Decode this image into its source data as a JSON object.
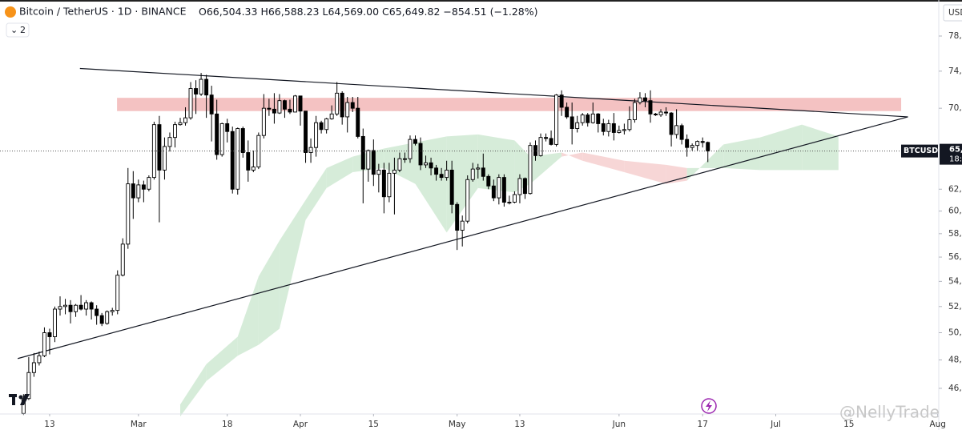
{
  "header": {
    "symbol": "Bitcoin / TetherUS · 1D · BINANCE",
    "ohlc": [
      {
        "label": "O",
        "value": "66,504.33"
      },
      {
        "label": "H",
        "value": "66,588.23"
      },
      {
        "label": "L",
        "value": "64,569.00"
      },
      {
        "label": "C",
        "value": "65,649.82"
      }
    ],
    "change": "−854.51 (−1.28%)",
    "indicators": "2",
    "currency": "USD",
    "ticker_tag": "BTCUSDT",
    "price_tag": "65,",
    "countdown_tag": "18:",
    "watermark": "@NellyTrade"
  },
  "chart_data": {
    "type": "candlestick",
    "log_scale": true,
    "grid": false,
    "up_color": "#ffffff",
    "down_color": "#000000",
    "edge_color": "#000000",
    "xlim": [
      -4.5,
      175.2
    ],
    "ylim": [
      44370,
      82330
    ],
    "xticks": [
      {
        "value": 5,
        "label": "13"
      },
      {
        "value": 22,
        "label": "Mar"
      },
      {
        "value": 39,
        "label": "18"
      },
      {
        "value": 53,
        "label": "Apr"
      },
      {
        "value": 67,
        "label": "15"
      },
      {
        "value": 83,
        "label": "May"
      },
      {
        "value": 95,
        "label": "13"
      },
      {
        "value": 114,
        "label": "Jun"
      },
      {
        "value": 130,
        "label": "17"
      },
      {
        "value": 144,
        "label": "Jul"
      },
      {
        "value": 158,
        "label": "15"
      },
      {
        "value": 175,
        "label": "Aug"
      }
    ],
    "yticks": [
      {
        "value": 78000,
        "label": "78,"
      },
      {
        "value": 74000,
        "label": "74,"
      },
      {
        "value": 70000,
        "label": "70,"
      },
      {
        "value": 62000,
        "label": "62,"
      },
      {
        "value": 60000,
        "label": "60,"
      },
      {
        "value": 58000,
        "label": "58,"
      },
      {
        "value": 56000,
        "label": "56,"
      },
      {
        "value": 54000,
        "label": "54,"
      },
      {
        "value": 52000,
        "label": "52,"
      },
      {
        "value": 50000,
        "label": "50,"
      },
      {
        "value": 48000,
        "label": "48,"
      },
      {
        "value": 46000,
        "label": "46,"
      }
    ],
    "open": [
      44300,
      45300,
      47100,
      47800,
      48300,
      50000,
      49700,
      51800,
      52000,
      52100,
      51600,
      52100,
      51800,
      52300,
      51800,
      51300,
      50700,
      51600,
      51700,
      54500,
      57100,
      62500,
      61200,
      62400,
      62000,
      63100,
      68300,
      63800,
      66100,
      67000,
      68300,
      68500,
      69000,
      72100,
      71500,
      73100,
      71400,
      69400,
      65300,
      68400,
      67600,
      62000,
      67900,
      65500,
      63800,
      64100,
      67200,
      70000,
      69900,
      69500,
      70800,
      69900,
      69600,
      71300,
      69700,
      65500,
      66000,
      68500,
      67800,
      68900,
      69400,
      71600,
      69100,
      70600,
      70000,
      67100,
      63900,
      65700,
      63400,
      63800,
      61300,
      63500,
      63800,
      64900,
      64900,
      66800,
      66400,
      64300,
      64500,
      64000,
      63400,
      63100,
      63800,
      60600,
      58300,
      59100,
      62900,
      63900,
      64000,
      63200,
      62300,
      61200,
      63100,
      60800,
      60800,
      61500,
      63000,
      61600,
      66200,
      65200,
      67000,
      66900,
      66300,
      71400,
      70100,
      69100,
      67900,
      68500,
      69300,
      68500,
      69400,
      68400,
      67600,
      68400,
      67500,
      67700,
      67800,
      68800,
      70600,
      71100,
      70800,
      69400,
      69300,
      69600,
      69500,
      67300,
      68200,
      66800,
      66000,
      66200,
      66600,
      66504.33
    ],
    "high": [
      45600,
      48200,
      48500,
      48600,
      50400,
      50300,
      52000,
      52800,
      52600,
      52500,
      52200,
      52900,
      52500,
      52400,
      52100,
      51500,
      51700,
      51900,
      54900,
      57600,
      64000,
      63700,
      62900,
      62800,
      63300,
      68600,
      69200,
      67000,
      67500,
      68600,
      69000,
      70100,
      72800,
      73000,
      73800,
      73600,
      72400,
      70900,
      68500,
      68900,
      68100,
      68000,
      68100,
      66700,
      65700,
      67500,
      71500,
      71000,
      71600,
      71500,
      70900,
      70900,
      71400,
      71300,
      69700,
      66900,
      69200,
      68700,
      69000,
      70300,
      72800,
      71800,
      71200,
      71200,
      71200,
      67900,
      65800,
      66800,
      64400,
      64500,
      64500,
      65000,
      65500,
      65500,
      67200,
      67200,
      67000,
      65200,
      65000,
      64300,
      64000,
      64700,
      64700,
      60800,
      59600,
      63300,
      64500,
      64400,
      65400,
      63400,
      62900,
      63400,
      63400,
      61400,
      61800,
      63400,
      63100,
      66500,
      66700,
      67400,
      67400,
      67700,
      71500,
      71900,
      70600,
      70600,
      69200,
      69500,
      69500,
      70600,
      69500,
      68900,
      68800,
      69500,
      68200,
      68400,
      70200,
      71000,
      71700,
      71600,
      71900,
      69500,
      69900,
      70100,
      69600,
      69900,
      68400,
      67300,
      66400,
      66700,
      67000,
      66588.23
    ],
    "low": [
      44200,
      45200,
      46800,
      47600,
      48200,
      48400,
      49300,
      51300,
      51400,
      50700,
      51200,
      51700,
      51300,
      51000,
      50600,
      50500,
      50600,
      51300,
      51400,
      54400,
      56700,
      59300,
      60800,
      60800,
      61800,
      62900,
      59000,
      62900,
      65600,
      66000,
      68200,
      68200,
      68800,
      69400,
      71300,
      69000,
      66600,
      64800,
      65100,
      66500,
      61600,
      61500,
      65000,
      62700,
      63600,
      63900,
      66900,
      69200,
      68400,
      69400,
      69000,
      69400,
      69600,
      68200,
      64500,
      64500,
      65100,
      67400,
      67400,
      68800,
      69200,
      68300,
      67500,
      69600,
      66900,
      60700,
      62700,
      62300,
      61700,
      59800,
      60800,
      59700,
      63600,
      64500,
      64500,
      66200,
      63800,
      64000,
      63300,
      62800,
      62800,
      62800,
      59800,
      56600,
      56900,
      58900,
      62700,
      63000,
      62800,
      62000,
      60900,
      60600,
      60400,
      60600,
      60700,
      60700,
      61100,
      61500,
      64700,
      65100,
      66600,
      66200,
      66100,
      69200,
      68900,
      66300,
      67500,
      68200,
      68100,
      68400,
      67500,
      67200,
      67100,
      66700,
      67400,
      67300,
      67600,
      68500,
      70400,
      70100,
      68500,
      69200,
      69100,
      69200,
      66100,
      66900,
      66300,
      65100,
      65700,
      65700,
      66000,
      64569
    ],
    "close": [
      45300,
      47100,
      47800,
      48300,
      50000,
      49700,
      51800,
      52000,
      52100,
      51600,
      52100,
      51800,
      52300,
      51800,
      51300,
      50700,
      51600,
      51700,
      54500,
      57100,
      62500,
      61200,
      62400,
      62000,
      63100,
      68300,
      63800,
      66100,
      67000,
      68300,
      68500,
      69000,
      72100,
      71500,
      73100,
      71400,
      69400,
      65300,
      68400,
      67600,
      62000,
      67900,
      65500,
      63800,
      64100,
      67200,
      70000,
      69900,
      69500,
      70800,
      69900,
      69600,
      71300,
      69700,
      65500,
      66000,
      68500,
      67800,
      68900,
      69400,
      71600,
      69100,
      70600,
      70000,
      67100,
      63900,
      65700,
      63400,
      63800,
      61300,
      63500,
      63800,
      64900,
      64900,
      66800,
      66400,
      64300,
      64500,
      64000,
      63400,
      63100,
      63800,
      60600,
      58300,
      59100,
      62900,
      63900,
      64000,
      63200,
      62300,
      61200,
      63100,
      60800,
      60800,
      61500,
      63000,
      61600,
      66200,
      65200,
      67000,
      66900,
      66300,
      71400,
      70100,
      69100,
      67900,
      68500,
      69300,
      68500,
      69400,
      68400,
      67600,
      68400,
      67500,
      67700,
      67800,
      68800,
      70600,
      71100,
      70800,
      69400,
      69300,
      69600,
      69500,
      67300,
      68200,
      66800,
      66000,
      66200,
      66600,
      66500,
      65649.82
    ],
    "cloud": {
      "up_color": "#cfe9d2",
      "down_color": "#f6cfcf",
      "x": [
        30,
        35,
        41,
        45,
        49,
        54,
        58,
        63,
        69,
        75,
        81,
        87,
        94,
        97,
        103,
        107,
        115,
        123,
        127,
        134,
        141,
        149,
        156
      ],
      "span_a": [
        44900,
        47700,
        49700,
        54400,
        57400,
        61000,
        64000,
        65100,
        65900,
        66500,
        67100,
        67300,
        66700,
        65100,
        65500,
        64700,
        63600,
        62500,
        62800,
        66300,
        67000,
        68300,
        67100
      ],
      "span_b": [
        44100,
        46500,
        48300,
        49100,
        50300,
        59200,
        62100,
        63600,
        64000,
        62500,
        58100,
        62100,
        61700,
        62500,
        65100,
        65500,
        64700,
        64300,
        64000,
        64000,
        63800,
        63800,
        63800
      ]
    },
    "zone": {
      "x": [
        17.9,
        168
      ],
      "y": [
        69700,
        71100
      ],
      "color": "#f4c2c2"
    },
    "trendlines": [
      {
        "x": [
          10.8,
          169.3
        ],
        "y": [
          74300,
          69100
        ]
      },
      {
        "x": [
          -1.1,
          169.3
        ],
        "y": [
          48100,
          69100
        ]
      }
    ]
  }
}
